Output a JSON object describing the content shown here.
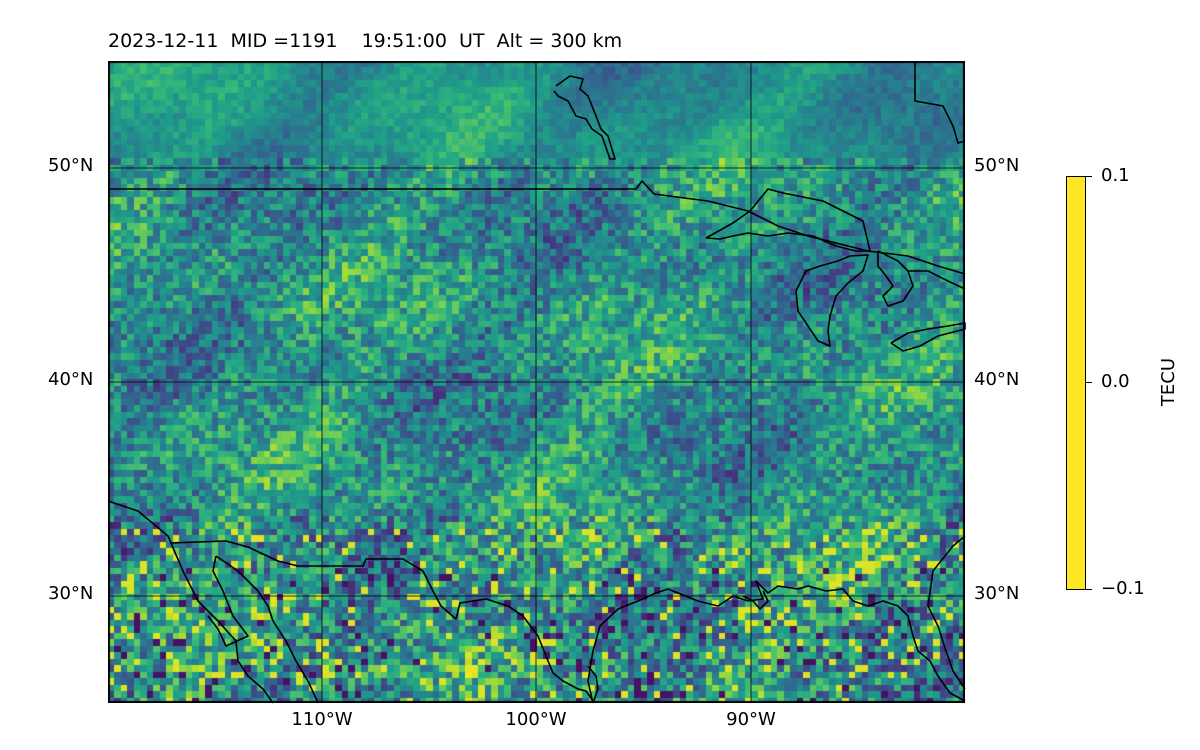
{
  "title": "2023-12-11  MID =1191    19:51:00  UT  Alt = 300 km",
  "map": {
    "projection": "PlateCarree",
    "extent": {
      "lon_min": -120,
      "lon_max": -80,
      "lat_min": 25,
      "lat_max": 55
    },
    "gridlines": true,
    "field": "TEC perturbation (noisy raster, viridis colormap)",
    "colormap": "viridis",
    "colors": {
      "coastline": "#000000",
      "gridline": "#000000"
    }
  },
  "lat_labels": [
    "50°N",
    "40°N",
    "30°N"
  ],
  "lon_labels": [
    "110°W",
    "100°W",
    "90°W"
  ],
  "colorbar": {
    "label": "TECU",
    "vmin": -0.1,
    "vmax": 0.1,
    "ticks": [
      "0.1",
      "0.0",
      "−0.1"
    ]
  }
}
